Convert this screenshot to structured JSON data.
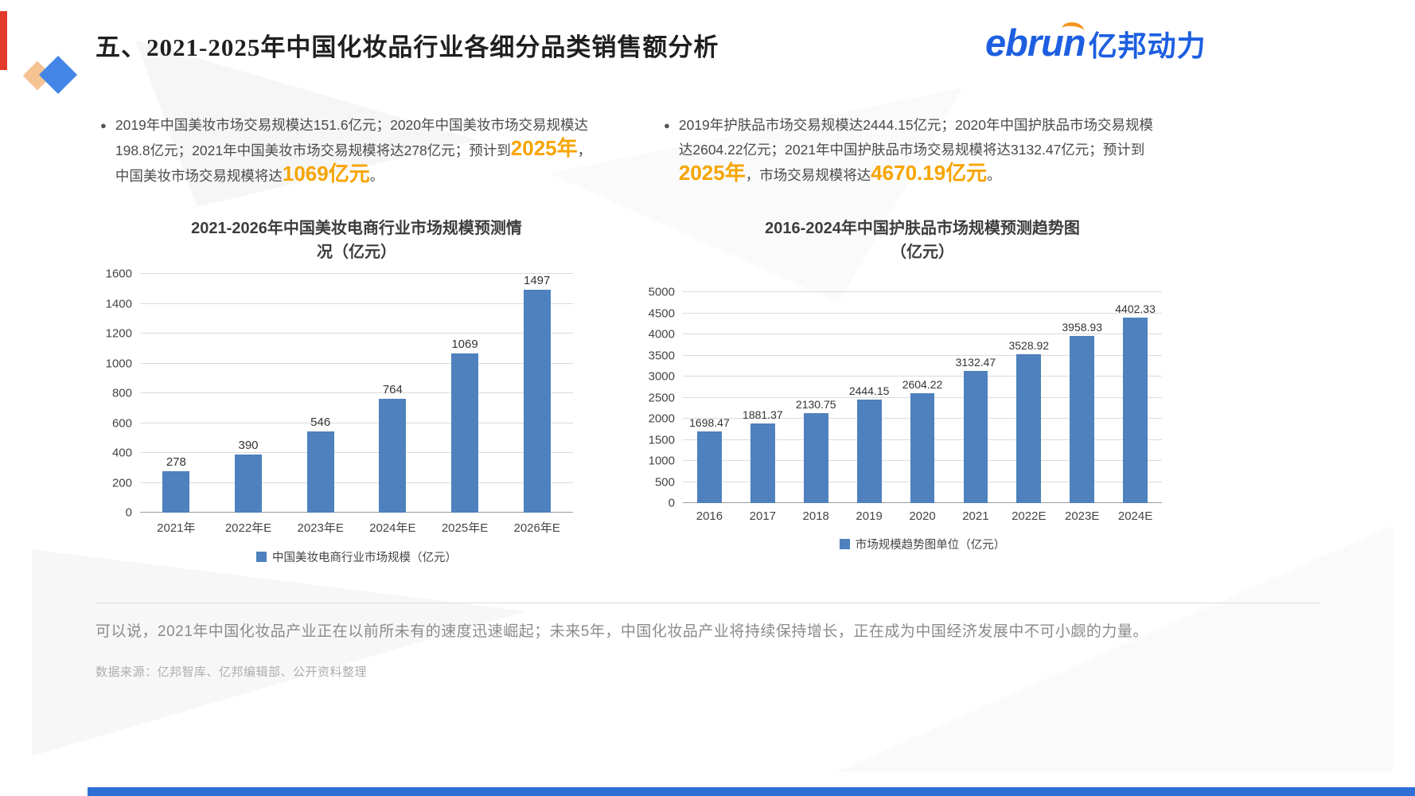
{
  "page": {
    "title": "五、2021-2025年中国化妆品行业各细分品类销售额分析",
    "summary": "可以说，2021年中国化妆品产业正在以前所未有的速度迅速崛起；未来5年，中国化妆品产业将持续保持增长，正在成为中国经济发展中不可小觑的力量。",
    "source": "数据来源：亿邦智库、亿邦编辑部、公开资料整理"
  },
  "logo": {
    "en": "ebrun",
    "cn": "亿邦动力",
    "blue": "#1D5FE0",
    "accent_orange": "#F7941D"
  },
  "bullets": {
    "marker": "●",
    "left": {
      "seg1": "2019年中国美妆市场交易规模达151.6亿元；2020年中国美妆市场交易规模达198.8亿元；2021年中国美妆市场交易规模将达278亿元；预计到",
      "hl1": "2025年",
      "seg2": "，中国美妆市场交易规模将达",
      "hl2": "1069亿元",
      "seg3": "。"
    },
    "right": {
      "seg1": "2019年护肤品市场交易规模达2444.15亿元；2020年中国护肤品市场交易规模达2604.22亿元；2021年中国护肤品市场交易规模将达3132.47亿元；预计到",
      "hl1": "2025年",
      "seg2": "，市场交易规模将达",
      "hl2": "4670.19亿元",
      "seg3": "。"
    }
  },
  "chart_data": [
    {
      "type": "bar",
      "title": "2021-2026年中国美妆电商行业市场规模预测情况（亿元）",
      "title_lines": [
        "2021-2026年中国美妆电商行业市场规模预测情",
        "况（亿元）"
      ],
      "categories": [
        "2021年",
        "2022年E",
        "2023年E",
        "2024年E",
        "2025年E",
        "2026年E"
      ],
      "values": [
        278,
        390,
        546,
        764,
        1069,
        1497
      ],
      "ylim": [
        0,
        1600
      ],
      "ytick_step": 200,
      "grid": true,
      "legend": "中国美妆电商行业市场规模（亿元）",
      "legend_position": "bottom",
      "bar_color": "#4E81BD"
    },
    {
      "type": "bar",
      "title": "2016-2024年中国护肤品市场规模预测趋势图（亿元）",
      "title_lines": [
        "2016-2024年中国护肤品市场规模预测趋势图",
        "（亿元）"
      ],
      "categories": [
        "2016",
        "2017",
        "2018",
        "2019",
        "2020",
        "2021",
        "2022E",
        "2023E",
        "2024E"
      ],
      "values": [
        1698.47,
        1881.37,
        2130.75,
        2444.15,
        2604.22,
        3132.47,
        3528.92,
        3958.93,
        4402.33
      ],
      "ylim": [
        0,
        5000
      ],
      "ytick_step": 500,
      "grid": true,
      "legend": "市场规模趋势图单位（亿元）",
      "legend_position": "bottom",
      "bar_color": "#4E81BD"
    }
  ]
}
